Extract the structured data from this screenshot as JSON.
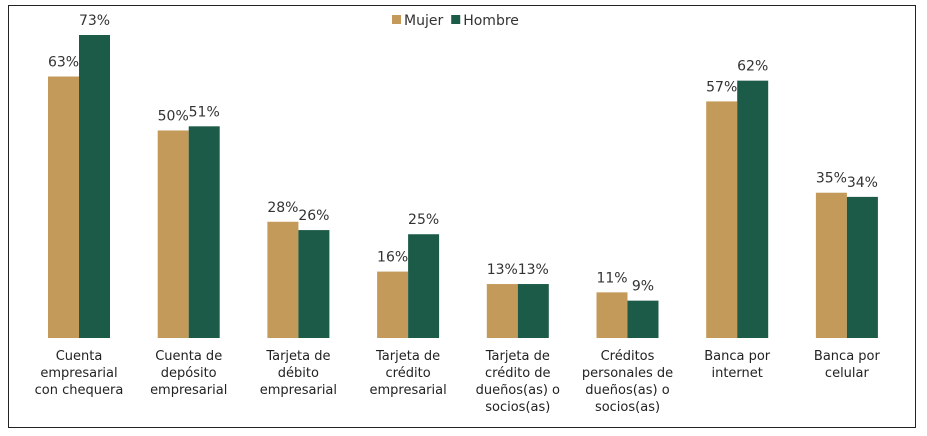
{
  "chart_data": {
    "type": "bar",
    "categories": [
      "Cuenta empresarial con chequera",
      "Cuenta de depósito empresarial",
      "Tarjeta de débito empresarial",
      "Tarjeta de crédito empresarial",
      "Tarjeta de crédito de dueños(as) o socios(as)",
      "Créditos personales de dueños(as) o socios(as)",
      "Banca por internet",
      "Banca por celular"
    ],
    "series": [
      {
        "name": "Mujer",
        "color": "#c49a5a",
        "values": [
          63,
          50,
          28,
          16,
          13,
          11,
          57,
          35
        ],
        "value_labels": [
          "63%",
          "50%",
          "28%",
          "16%",
          "13%",
          "11%",
          "57%",
          "35%"
        ]
      },
      {
        "name": "Hombre",
        "color": "#1d5b49",
        "values": [
          73,
          51,
          26,
          25,
          13,
          9,
          62,
          34
        ],
        "value_labels": [
          "73%",
          "51%",
          "26%",
          "25%",
          "13%",
          "9%",
          "62%",
          "34%"
        ]
      }
    ],
    "legend": "top"
  }
}
